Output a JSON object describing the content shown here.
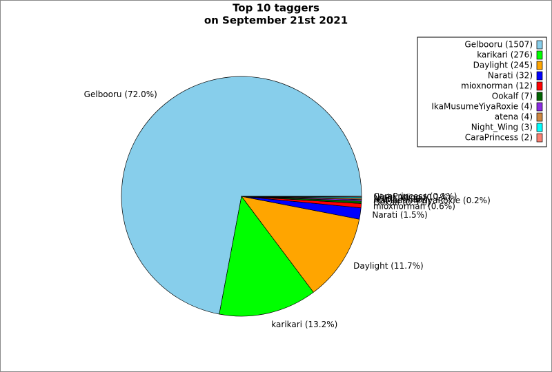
{
  "chart_data": {
    "type": "pie",
    "title": [
      "Top 10 taggers",
      "on September 21st 2021"
    ],
    "categories": [
      "Gelbooru",
      "karikari",
      "Daylight",
      "Narati",
      "mioxnorman",
      "Ookalf",
      "IkaMusumeYiyaRoxie",
      "atena",
      "Night_Wing",
      "CaraPrincess"
    ],
    "values": [
      1507,
      276,
      245,
      32,
      12,
      7,
      4,
      4,
      3,
      2
    ],
    "legend_labels": [
      "Gelbooru (1507)",
      "karikari (276)",
      "Daylight (245)",
      "Narati (32)",
      "mioxnorman (12)",
      "Ookalf (7)",
      "IkaMusumeYiyaRoxie (4)",
      "atena (4)",
      "Night_Wing (3)",
      "CaraPrincess (2)"
    ],
    "value_labels": [
      "Gelbooru (72.0%)",
      "karikari (13.2%)",
      "Daylight (11.7%)",
      "Narati (1.5%)",
      "mioxnorman (0.6%)",
      "Ookalf (0.3%)",
      "IkaMusumeYiyaRoxie (0.2%)",
      "atena (0.2%)",
      "Night_Wing (0.1%)",
      "CaraPrincess (0.1%)"
    ],
    "colors": [
      "#87ceeb",
      "#00ff00",
      "#ffa500",
      "#0000ff",
      "#ff0000",
      "#006400",
      "#8a2be2",
      "#cd853f",
      "#00ffff",
      "#fa8072"
    ],
    "legend": "upper right"
  }
}
